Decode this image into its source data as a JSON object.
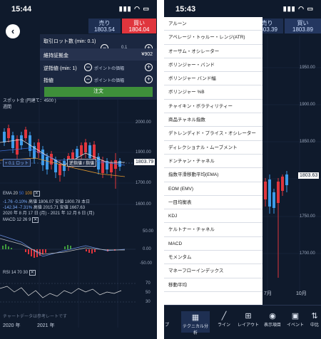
{
  "left": {
    "status_time": "15:44",
    "quote": {
      "sell_label": "売り",
      "sell_price": "1803.54",
      "buy_label": "買い",
      "buy_price": "1804.04"
    },
    "order_panel": {
      "lot_label": "取引ロット数 (min: 0.1)",
      "lot_value": "0.1",
      "margin_label": "維持証拠金",
      "margin_value": "¥902",
      "stop_label": "逆指値 (min: 1)",
      "stop_placeholder": "ポイントの価幅",
      "limit_label": "指値",
      "limit_placeholder": "ポイントの価幅",
      "order_button": "注文"
    },
    "chart": {
      "instrument": "スポット金 (円建て：4500 )",
      "timeframe": "週間",
      "lot_line_label": "+ 0.1 ロット",
      "stop_tag": "逆指値 / 指値",
      "price_tag": "1803.79",
      "y_ticks": [
        "2000.00",
        "1900.00",
        "1800.00",
        "1700.00",
        "1600.00"
      ]
    },
    "ema": {
      "label": "EMA",
      "periods": [
        "20",
        "50",
        "100"
      ],
      "row1": [
        "-1.76",
        "-0.10%",
        "高値 1806.07",
        "安値 1800.78",
        "本日"
      ],
      "row2": [
        "-142.34",
        "-7.31%",
        "高値 2015.71",
        "安値 1667.63"
      ],
      "range": "2020 年 8 月 17 日 (月) - 2021 年 12 月 6 日 (月)"
    },
    "macd": {
      "label": "MACD",
      "params": [
        "12",
        "26",
        "9"
      ],
      "y_ticks": [
        "50.00",
        "0.00",
        "-50.00"
      ]
    },
    "rsi": {
      "label": "RSI",
      "params": [
        "14",
        "70",
        "30"
      ],
      "y_ticks": [
        "70",
        "50",
        "30"
      ]
    },
    "note": "チャートデータは参考レートです",
    "x_labels": [
      "2020 年",
      "2021 年"
    ]
  },
  "right": {
    "status_time": "15:43",
    "quote": {
      "sell_label": "売り",
      "sell_price": "1803.39",
      "buy_label": "買い",
      "buy_price": "1803.89"
    },
    "y_ticks": [
      "1950.00",
      "1900.00",
      "1850.00",
      "1800.00",
      "1750.00",
      "1700.00"
    ],
    "price_tag": "1803.63",
    "x_labels": [
      "7月",
      "10月"
    ],
    "indicators": [
      "アルーン",
      "アベレージ・トゥルー・レンジ(ATR)",
      "オーサム・オシレーター",
      "ボリンジャー・バンド",
      "ボリンジャー バンド幅",
      "ボリンジャー %B",
      "チャイキン・ボラティリティー",
      "商品チャネル指数",
      "デトレンディド・プライス・オシレーター",
      "ディレクショナル・ムーブメント",
      "ドンチャン・チャネル",
      "指数平滑移動平均(EMA)",
      "EOM (EMV)",
      "一目均衡表",
      "KDJ",
      "ケルトナー・チャネル",
      "MACD",
      "モメンタム",
      "マネーフローインデックス",
      "移動平均"
    ],
    "nav": [
      "プ",
      "テクニカル分析",
      "ライン",
      "レイアウト",
      "表示項目",
      "イベント",
      "中比"
    ]
  }
}
